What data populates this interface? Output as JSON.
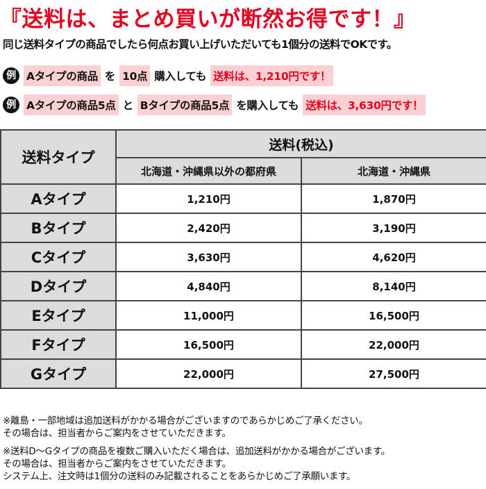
{
  "header": {
    "title": "『送料は、まとめ買いが断然お得です！』",
    "subtitle": "同じ送料タイプの商品でしたら何点お買い上げいただいても1個分の送料でOKです。"
  },
  "examples": [
    {
      "badge": "例",
      "parts": [
        "Aタイプの商品",
        "を",
        "10点",
        "購入しても",
        "送料は、1,210円です！"
      ]
    },
    {
      "badge": "例",
      "parts": [
        "Aタイプの商品5点",
        "と",
        "Bタイプの商品5点",
        "を購入しても",
        "送料は、3,630円です！"
      ]
    }
  ],
  "table": {
    "corner": "送料タイプ",
    "group": "送料(税込)",
    "columns": [
      "北海道・沖縄県以外の都府県",
      "北海道・沖縄県"
    ],
    "rows": [
      [
        "Aタイプ",
        "1,210円",
        "1,870円"
      ],
      [
        "Bタイプ",
        "2,420円",
        "3,190円"
      ],
      [
        "Cタイプ",
        "3,630円",
        "4,620円"
      ],
      [
        "Dタイプ",
        "4,840円",
        "8,140円"
      ],
      [
        "Eタイプ",
        "11,000円",
        "16,500円"
      ],
      [
        "Fタイプ",
        "16,500円",
        "22,000円"
      ],
      [
        "Gタイプ",
        "22,000円",
        "27,500円"
      ]
    ]
  },
  "notes": [
    [
      "※離島・一部地域は追加送料がかかる場合がございますのであらかじめご了承ください。",
      "その場合は、担当者からご案内をさせていただきます。"
    ],
    [
      "※送料D～Gタイプの商品を複数ご購入いただく場合は、追加送料がかかる場合がございます。",
      "その場合は、担当者からご案内をさせていただきます。",
      "システム上、注文時は1個分の送料のみ記載されることをあらかじめご了承願います。"
    ]
  ]
}
